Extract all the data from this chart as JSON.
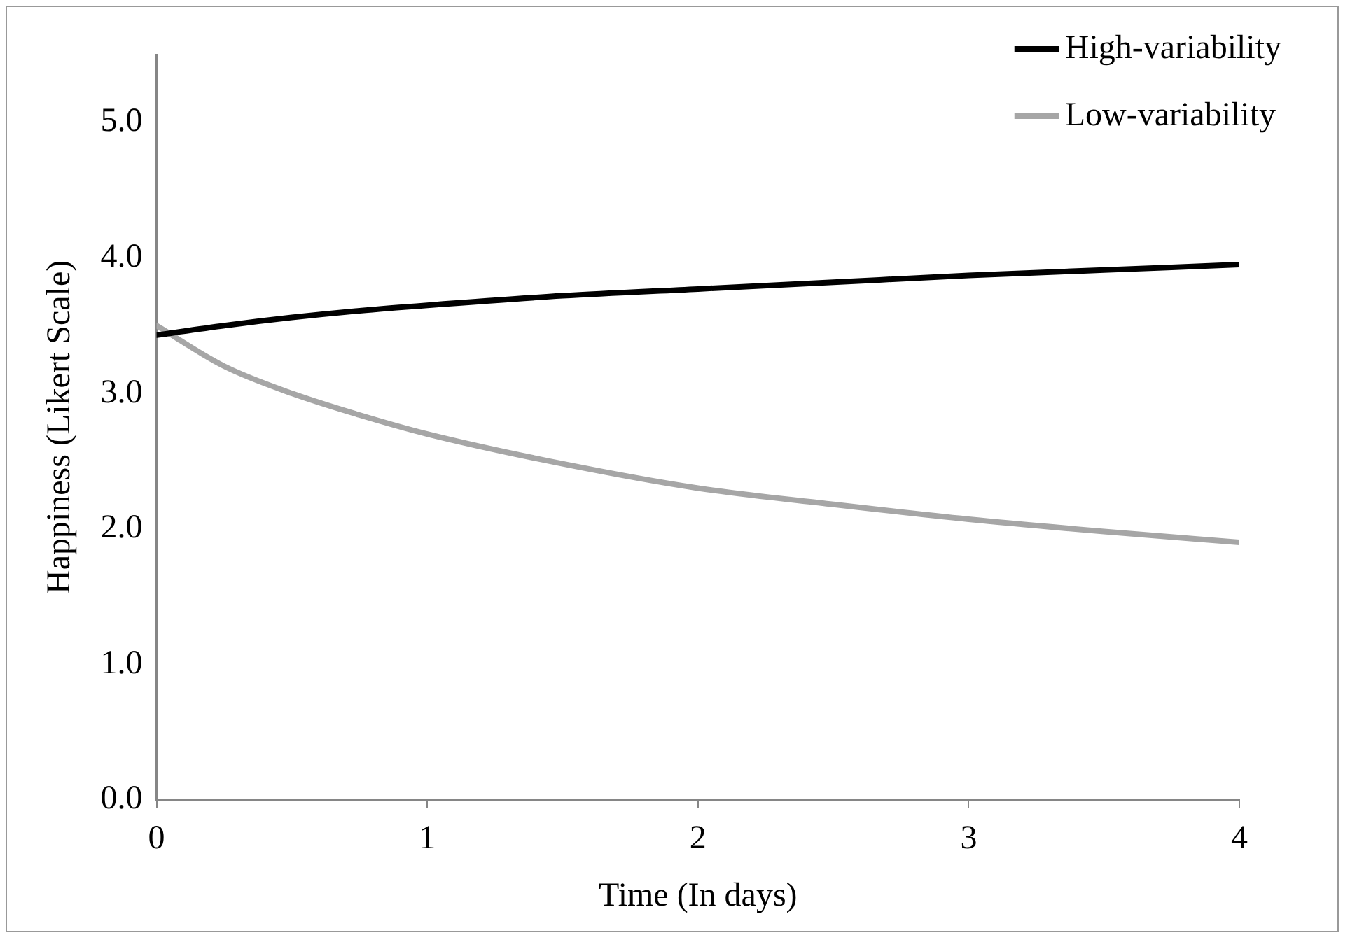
{
  "chart_data": {
    "type": "line",
    "xlabel": "Time (In days)",
    "ylabel": "Happiness (Likert Scale)",
    "x": [
      0,
      0.25,
      0.5,
      0.75,
      1,
      1.5,
      2,
      2.5,
      3,
      3.5,
      4
    ],
    "series": [
      {
        "name": "High-variability",
        "color": "#000000",
        "values": [
          3.43,
          3.5,
          3.56,
          3.61,
          3.65,
          3.72,
          3.77,
          3.82,
          3.87,
          3.91,
          3.95
        ]
      },
      {
        "name": "Low-variability",
        "color": "#a6a6a6",
        "values": [
          3.5,
          3.2,
          3.0,
          2.84,
          2.7,
          2.48,
          2.3,
          2.18,
          2.07,
          1.98,
          1.9
        ]
      }
    ],
    "xlim": [
      0,
      4
    ],
    "xticks": [
      0,
      1,
      2,
      3,
      4
    ],
    "ylim": [
      0,
      5.5
    ],
    "yticks": [
      {
        "value": 0,
        "label": "0.0"
      },
      {
        "value": 1,
        "label": "1.0"
      },
      {
        "value": 2,
        "label": "2.0"
      },
      {
        "value": 3,
        "label": "3.0"
      },
      {
        "value": 4,
        "label": "4.0"
      },
      {
        "value": 5,
        "label": "5.0"
      }
    ],
    "grid": false,
    "legend": "top right",
    "marker": "none",
    "line_style": "solid"
  }
}
